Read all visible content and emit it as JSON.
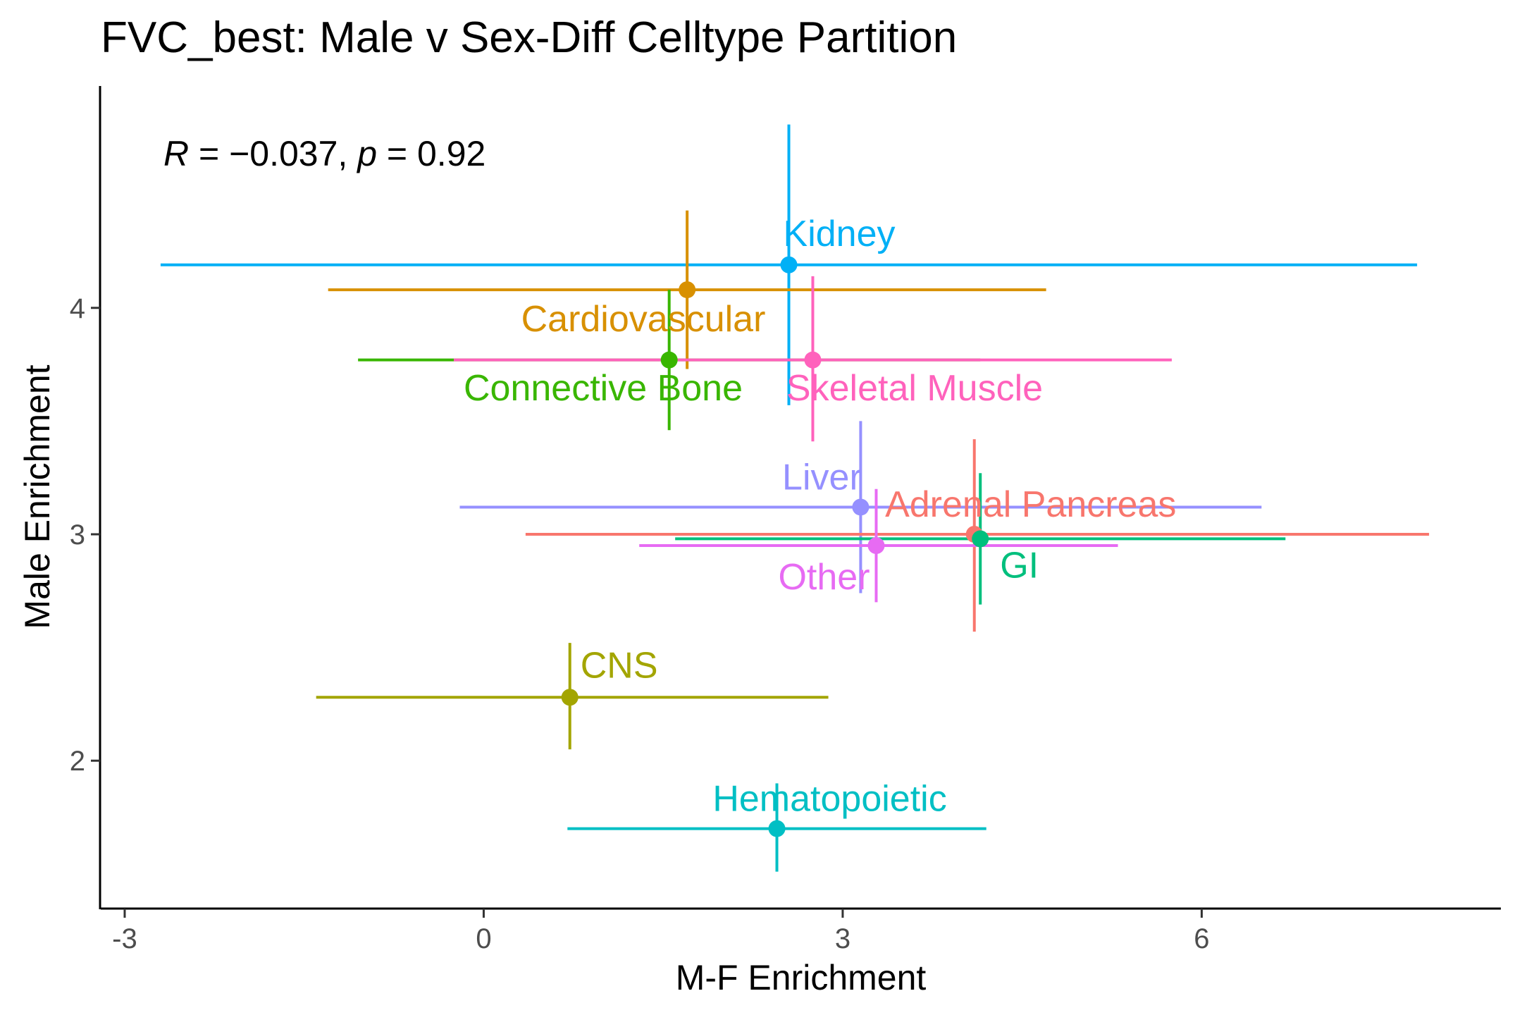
{
  "chart_data": {
    "type": "scatter",
    "title": "FVC_best: Male v Sex-Diff Celltype Partition",
    "xlabel": "M-F Enrichment",
    "ylabel": "Male Enrichment",
    "xlim": [
      -3.2,
      8.5
    ],
    "ylim": [
      1.35,
      4.98
    ],
    "x_ticks": [
      -3,
      0,
      3,
      6
    ],
    "x_tick_labels": [
      "-3",
      "0",
      "3",
      "6"
    ],
    "y_ticks": [
      2,
      3,
      4
    ],
    "y_tick_labels": [
      "2",
      "3",
      "4"
    ],
    "grid": false,
    "legend": "none",
    "annotation": {
      "r_symbol": "R",
      "r_text": " = −0.037, ",
      "p_symbol": "p",
      "p_text": " = 0.92"
    },
    "points": [
      {
        "label": "Kidney",
        "x": 2.55,
        "y": 4.19,
        "xmin": -2.7,
        "xmax": 7.8,
        "ymin": 3.57,
        "ymax": 4.81,
        "color": "#00B0F6"
      },
      {
        "label": "Cardiovascular",
        "x": 1.7,
        "y": 4.08,
        "xmin": -1.3,
        "xmax": 4.7,
        "ymin": 3.73,
        "ymax": 4.43,
        "color": "#D89000"
      },
      {
        "label": "Connective Bone",
        "x": 1.55,
        "y": 3.77,
        "xmin": -1.05,
        "xmax": 4.15,
        "ymin": 3.46,
        "ymax": 4.08,
        "color": "#39B600"
      },
      {
        "label": "Skeletal Muscle",
        "x": 2.75,
        "y": 3.77,
        "xmin": -0.25,
        "xmax": 5.75,
        "ymin": 3.41,
        "ymax": 4.14,
        "color": "#FF62BC"
      },
      {
        "label": "Liver",
        "x": 3.15,
        "y": 3.12,
        "xmin": -0.2,
        "xmax": 6.5,
        "ymin": 2.74,
        "ymax": 3.5,
        "color": "#9590FF"
      },
      {
        "label": "Adrenal Pancreas",
        "x": 4.1,
        "y": 3.0,
        "xmin": 0.35,
        "xmax": 7.9,
        "ymin": 2.57,
        "ymax": 3.42,
        "color": "#F8766D"
      },
      {
        "label": "GI",
        "x": 4.15,
        "y": 2.98,
        "xmin": 1.6,
        "xmax": 6.7,
        "ymin": 2.69,
        "ymax": 3.27,
        "color": "#00BF7D"
      },
      {
        "label": "Other",
        "x": 3.28,
        "y": 2.95,
        "xmin": 1.3,
        "xmax": 5.3,
        "ymin": 2.7,
        "ymax": 3.2,
        "color": "#E76BF3"
      },
      {
        "label": "CNS",
        "x": 0.72,
        "y": 2.28,
        "xmin": -1.4,
        "xmax": 2.88,
        "ymin": 2.05,
        "ymax": 2.52,
        "color": "#A3A500"
      },
      {
        "label": "Hematopoietic",
        "x": 2.45,
        "y": 1.7,
        "xmin": 0.7,
        "xmax": 4.2,
        "ymin": 1.51,
        "ymax": 1.9,
        "color": "#00BFC4"
      }
    ]
  }
}
